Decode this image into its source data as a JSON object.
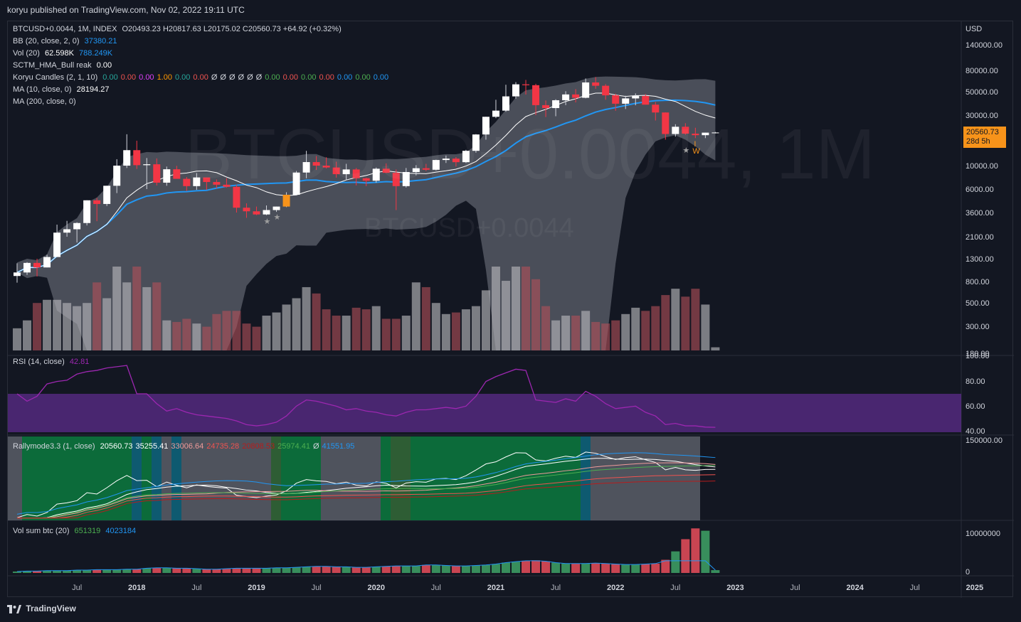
{
  "header": {
    "published": "koryu published on TradingView.com, Nov 02, 2022 19:11 UTC"
  },
  "watermark": {
    "big": "BTCUSD+0.0044, 1M",
    "small": "BTCUSD+0.0044"
  },
  "legend": {
    "main": {
      "symbol": "BTCUSD+0.0044, 1M, INDEX",
      "ohlc": "O20493.23  H20817.63  L20175.02  C20560.73  +64.92 (+0.32%)"
    },
    "bb": {
      "label": "BB (20, close, 2, 0)",
      "value": "37380.21"
    },
    "vol": {
      "label": "Vol (20)",
      "v1": "62.598K",
      "v2": "788.249K"
    },
    "sctm": {
      "label": "SCTM_HMA_Bull reak",
      "value": "0.00"
    },
    "koryu": {
      "label": "Koryu Candles (2, 1, 10)",
      "values": [
        {
          "t": "0.00",
          "c": "#26a69a"
        },
        {
          "t": "0.00",
          "c": "#ef5350"
        },
        {
          "t": "0.00",
          "c": "#e040fb"
        },
        {
          "t": "1.00",
          "c": "#ff9800"
        },
        {
          "t": "0.00",
          "c": "#26a69a"
        },
        {
          "t": "0.00",
          "c": "#ef5350"
        },
        {
          "t": "Ø",
          "c": "#d1d4dc"
        },
        {
          "t": "Ø",
          "c": "#d1d4dc"
        },
        {
          "t": "Ø",
          "c": "#d1d4dc"
        },
        {
          "t": "Ø",
          "c": "#d1d4dc"
        },
        {
          "t": "Ø",
          "c": "#d1d4dc"
        },
        {
          "t": "Ø",
          "c": "#d1d4dc"
        },
        {
          "t": "0.00",
          "c": "#4caf50"
        },
        {
          "t": "0.00",
          "c": "#ef5350"
        },
        {
          "t": "0.00",
          "c": "#4caf50"
        },
        {
          "t": "0.00",
          "c": "#ef5350"
        },
        {
          "t": "0.00",
          "c": "#2196f3"
        },
        {
          "t": "0.00",
          "c": "#4caf50"
        },
        {
          "t": "0.00",
          "c": "#2196f3"
        }
      ]
    },
    "ma10": {
      "label": "MA (10, close, 0)",
      "value": "28194.27"
    },
    "ma200": {
      "label": "MA (200, close, 0)"
    },
    "rsi": {
      "label": "RSI (14, close)",
      "value": "42.81"
    },
    "rally": {
      "label": "Rallymode3.3 (1, close)",
      "values": [
        {
          "t": "20560.73",
          "c": "#ffffff"
        },
        {
          "t": "35255.41",
          "c": "#ffffff"
        },
        {
          "t": "33006.64",
          "c": "#ef9a9a"
        },
        {
          "t": "24735.28",
          "c": "#ef5350"
        },
        {
          "t": "20808.53",
          "c": "#b71c1c"
        },
        {
          "t": "25974.41",
          "c": "#4caf50"
        },
        {
          "t": "Ø",
          "c": "#d1d4dc"
        },
        {
          "t": "41551.95",
          "c": "#2196f3"
        }
      ]
    },
    "volsum": {
      "label": "Vol sum btc (20)",
      "v1": "651319",
      "v2": "4023184"
    }
  },
  "price_tag": {
    "price": "20560.73",
    "countdown": "28d 5h"
  },
  "markers": {
    "i": "I",
    "w": "W",
    "star": "★"
  },
  "footer": {
    "brand": "TradingView"
  },
  "chart_data": {
    "type": "candlestick",
    "symbol": "BTCUSD+0.0044",
    "interval": "1M",
    "currency": "USD",
    "y_axis_labels": [
      "USD",
      "140000.00",
      "80000.00",
      "50000.00",
      "30000.00",
      "10000.00",
      "6000.00",
      "3600.00",
      "2100.00",
      "1300.00",
      "800.00",
      "500.00",
      "300.00",
      "180.00"
    ],
    "y_axis_values": [
      140000,
      80000,
      50000,
      30000,
      10000,
      6000,
      3600,
      2100,
      1300,
      800,
      500,
      300,
      180
    ],
    "rsi_axis_labels": [
      "100.00",
      "80.00",
      "60.00",
      "40.00"
    ],
    "rsi_axis_values": [
      100,
      80,
      60,
      40
    ],
    "rally_axis_label": "150000.00",
    "volsum_axis_labels": [
      "10000000",
      "0"
    ],
    "x_axis_labels": [
      "Jul",
      "2018",
      "Jul",
      "2019",
      "Jul",
      "2020",
      "Jul",
      "2021",
      "Jul",
      "2022",
      "Jul",
      "2023",
      "Jul",
      "2024",
      "Jul",
      "2025"
    ],
    "x_axis_months": [
      "2017-07",
      "2018-01",
      "2018-07",
      "2019-01",
      "2019-07",
      "2020-01",
      "2020-07",
      "2021-01",
      "2021-07",
      "2022-01",
      "2022-07",
      "2023-01",
      "2023-07",
      "2024-01",
      "2024-07",
      "2025-01"
    ],
    "start_month": "2017-01",
    "candles": [
      [
        900,
        1180,
        780,
        970
      ],
      [
        970,
        1210,
        920,
        1190
      ],
      [
        1190,
        1300,
        890,
        1080
      ],
      [
        1080,
        1420,
        1080,
        1350
      ],
      [
        1350,
        2750,
        1350,
        2300
      ],
      [
        2300,
        2990,
        2100,
        2480
      ],
      [
        2480,
        2900,
        1850,
        2850
      ],
      [
        2850,
        4700,
        2700,
        4700
      ],
      [
        4700,
        4950,
        2970,
        4340
      ],
      [
        4340,
        6450,
        4150,
        6450
      ],
      [
        6450,
        11500,
        5500,
        10000
      ],
      [
        10000,
        19800,
        9500,
        14000
      ],
      [
        14000,
        17200,
        9300,
        10100
      ],
      [
        10100,
        11800,
        6000,
        10300
      ],
      [
        10300,
        11700,
        6500,
        6900
      ],
      [
        6900,
        9800,
        6450,
        9240
      ],
      [
        9240,
        9950,
        7650,
        7500
      ],
      [
        7500,
        7800,
        5760,
        6400
      ],
      [
        6400,
        8500,
        5900,
        7730
      ],
      [
        7730,
        7700,
        5900,
        7000
      ],
      [
        7000,
        7400,
        6100,
        6600
      ],
      [
        6600,
        7600,
        6200,
        6300
      ],
      [
        6300,
        6580,
        3600,
        4000
      ],
      [
        4000,
        4400,
        3200,
        3700
      ],
      [
        3700,
        4100,
        3400,
        3450
      ],
      [
        3450,
        4200,
        3400,
        3800
      ],
      [
        3800,
        4100,
        3650,
        4100
      ],
      [
        4100,
        5600,
        4050,
        5300
      ],
      [
        5300,
        8900,
        5300,
        8600
      ],
      [
        8600,
        13800,
        7600,
        10800
      ],
      [
        10800,
        12300,
        9100,
        10000
      ],
      [
        10000,
        12000,
        9400,
        9600
      ],
      [
        9600,
        10900,
        7700,
        8300
      ],
      [
        8300,
        10400,
        7300,
        9200
      ],
      [
        9200,
        9500,
        6500,
        7600
      ],
      [
        7600,
        7700,
        6400,
        7200
      ],
      [
        7200,
        9600,
        6900,
        9350
      ],
      [
        9350,
        10500,
        8500,
        8550
      ],
      [
        8550,
        9200,
        3800,
        6400
      ],
      [
        6400,
        9500,
        6200,
        8700
      ],
      [
        8700,
        10100,
        8100,
        9450
      ],
      [
        9450,
        10400,
        8900,
        9140
      ],
      [
        9140,
        11400,
        9000,
        11300
      ],
      [
        11300,
        12450,
        10600,
        11650
      ],
      [
        11650,
        12050,
        9800,
        10780
      ],
      [
        10780,
        14100,
        10600,
        13800
      ],
      [
        13800,
        19850,
        13250,
        19700
      ],
      [
        19700,
        29000,
        17600,
        28950
      ],
      [
        28950,
        41950,
        28100,
        33100
      ],
      [
        33100,
        58300,
        32300,
        45150
      ],
      [
        45150,
        61800,
        43000,
        58800
      ],
      [
        58800,
        64800,
        47000,
        57700
      ],
      [
        57700,
        59500,
        30000,
        37300
      ],
      [
        37300,
        41300,
        28800,
        35000
      ],
      [
        35000,
        42400,
        29300,
        41500
      ],
      [
        41500,
        50500,
        37300,
        47100
      ],
      [
        47100,
        52900,
        39600,
        43800
      ],
      [
        43800,
        66900,
        43300,
        61300
      ],
      [
        61300,
        69000,
        53300,
        57000
      ],
      [
        57000,
        59100,
        42000,
        46200
      ],
      [
        46200,
        47900,
        33000,
        38500
      ],
      [
        38500,
        45800,
        34300,
        43200
      ],
      [
        43200,
        48200,
        37200,
        45500
      ],
      [
        45500,
        47400,
        37700,
        37700
      ],
      [
        37700,
        40000,
        26700,
        31800
      ],
      [
        31800,
        31900,
        17600,
        19900
      ],
      [
        19900,
        24600,
        18800,
        23300
      ],
      [
        23300,
        25200,
        19600,
        20050
      ],
      [
        20050,
        22800,
        18200,
        19400
      ],
      [
        19400,
        20500,
        18200,
        20500
      ],
      [
        20493.23,
        20817.63,
        20175.02,
        20560.73
      ]
    ],
    "ma200_profile_note": "long-term moving average shown as grey band background"
  }
}
